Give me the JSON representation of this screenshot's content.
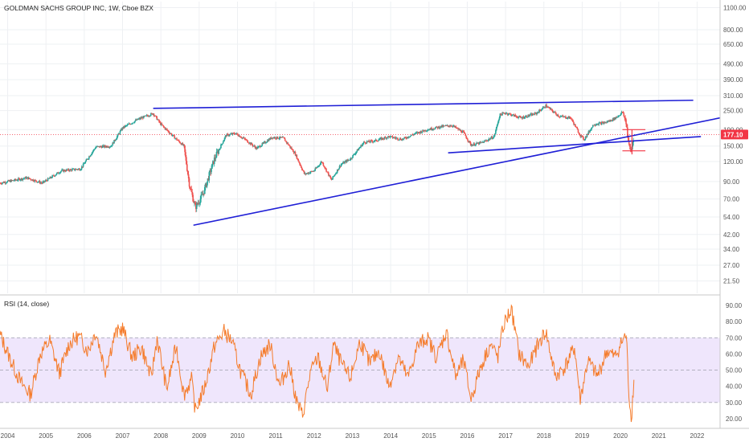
{
  "header": {
    "symbol_title": "GOLDMAN SACHS GROUP INC, 1W, Cboe BZX",
    "rsi_title": "RSI (14, close)"
  },
  "price_badge": {
    "value": "177.10",
    "color": "#f23645"
  },
  "colors": {
    "up": "#26a69a",
    "down": "#ef5350",
    "trendline": "#1f1fd6",
    "rsi_line": "#f57c2c",
    "rsi_band": "#e9ddfb",
    "marker": "#f23645",
    "price_line": "#f23645"
  },
  "chart_data": [
    {
      "type": "candlestick",
      "title": "GOLDMAN SACHS GROUP INC, 1W, Cboe BZX",
      "y_scale": "log",
      "ylim": [
        18,
        1200
      ],
      "xlim": [
        2003.8,
        2022.6
      ],
      "y_ticks": [
        1100,
        800,
        650,
        490,
        390,
        310,
        250,
        190,
        150,
        120,
        90,
        70,
        54,
        42,
        34,
        27,
        21.5
      ],
      "y_tick_labels": [
        "1100.00",
        "800.00",
        "650.00",
        "490.00",
        "390.00",
        "310.00",
        "250.00",
        "190.00",
        "150.00",
        "120.00",
        "90.00",
        "70.00",
        "54.00",
        "42.00",
        "34.00",
        "27.00",
        "21.50"
      ],
      "x_ticks": [
        2004,
        2005,
        2006,
        2007,
        2008,
        2009,
        2010,
        2011,
        2012,
        2013,
        2014,
        2015,
        2016,
        2017,
        2018,
        2019,
        2020,
        2021,
        2022
      ],
      "x_tick_labels": [
        "2004",
        "2005",
        "2006",
        "2007",
        "2008",
        "2009",
        "2010",
        "2011",
        "2012",
        "2013",
        "2014",
        "2015",
        "2016",
        "2017",
        "2018",
        "2019",
        "2020",
        "2021",
        "2022"
      ],
      "last_price": 177.1,
      "close_path": [
        [
          2003.8,
          88
        ],
        [
          2004.5,
          95
        ],
        [
          2004.9,
          88
        ],
        [
          2005.4,
          105
        ],
        [
          2005.9,
          108
        ],
        [
          2006.3,
          148
        ],
        [
          2006.7,
          150
        ],
        [
          2007.0,
          195
        ],
        [
          2007.4,
          220
        ],
        [
          2007.8,
          240
        ],
        [
          2008.0,
          205
        ],
        [
          2008.3,
          175
        ],
        [
          2008.6,
          150
        ],
        [
          2008.75,
          85
        ],
        [
          2008.9,
          62
        ],
        [
          2009.1,
          75
        ],
        [
          2009.4,
          125
        ],
        [
          2009.7,
          175
        ],
        [
          2009.95,
          180
        ],
        [
          2010.2,
          165
        ],
        [
          2010.5,
          145
        ],
        [
          2010.9,
          170
        ],
        [
          2011.2,
          168
        ],
        [
          2011.5,
          135
        ],
        [
          2011.75,
          100
        ],
        [
          2012.0,
          105
        ],
        [
          2012.2,
          120
        ],
        [
          2012.45,
          92
        ],
        [
          2012.7,
          115
        ],
        [
          2012.95,
          125
        ],
        [
          2013.3,
          158
        ],
        [
          2013.6,
          162
        ],
        [
          2013.95,
          172
        ],
        [
          2014.3,
          165
        ],
        [
          2014.6,
          178
        ],
        [
          2014.95,
          190
        ],
        [
          2015.3,
          198
        ],
        [
          2015.6,
          202
        ],
        [
          2015.9,
          182
        ],
        [
          2016.1,
          152
        ],
        [
          2016.4,
          158
        ],
        [
          2016.7,
          172
        ],
        [
          2016.85,
          235
        ],
        [
          2017.0,
          242
        ],
        [
          2017.4,
          225
        ],
        [
          2017.8,
          240
        ],
        [
          2018.05,
          268
        ],
        [
          2018.4,
          230
        ],
        [
          2018.7,
          225
        ],
        [
          2018.95,
          175
        ],
        [
          2019.05,
          165
        ],
        [
          2019.3,
          205
        ],
        [
          2019.6,
          210
        ],
        [
          2019.8,
          220
        ],
        [
          2019.95,
          232
        ],
        [
          2020.05,
          245
        ],
        [
          2020.15,
          210
        ],
        [
          2020.22,
          150
        ],
        [
          2020.28,
          140
        ],
        [
          2020.35,
          177.1
        ]
      ],
      "trendlines": [
        {
          "from": [
            2007.8,
            258
          ],
          "to": [
            2021.9,
            290
          ]
        },
        {
          "from": [
            2008.85,
            48
          ],
          "to": [
            2022.7,
            225
          ]
        },
        {
          "from": [
            2015.5,
            136
          ],
          "to": [
            2022.1,
            172
          ]
        }
      ],
      "markers": [
        {
          "kind": "range",
          "x": 2020.3,
          "low": 133,
          "high": 190
        },
        {
          "kind": "level",
          "from": 2020.05,
          "to": 2020.65,
          "y": 190
        },
        {
          "kind": "level",
          "from": 2020.05,
          "to": 2020.65,
          "y": 140
        }
      ]
    },
    {
      "type": "line",
      "title": "RSI (14, close)",
      "ylim": [
        15,
        95
      ],
      "y_ticks": [
        90,
        80,
        70,
        60,
        50,
        40,
        30,
        20
      ],
      "y_tick_labels": [
        "90.00",
        "80.00",
        "70.00",
        "60.00",
        "50.00",
        "40.00",
        "30.00",
        "20.00"
      ],
      "band": [
        30,
        70
      ],
      "mid": 50,
      "series": [
        {
          "x": [
            2003.8,
            2004.1,
            2004.35,
            2004.6,
            2004.85,
            2005.1,
            2005.35,
            2005.6,
            2005.85,
            2006.1,
            2006.3,
            2006.55,
            2006.8,
            2007.0,
            2007.25,
            2007.5,
            2007.75,
            2007.9,
            2008.15,
            2008.4,
            2008.6,
            2008.8,
            2008.9,
            2009.15,
            2009.4,
            2009.65,
            2009.85,
            2010.1,
            2010.35,
            2010.6,
            2010.85,
            2011.1,
            2011.35,
            2011.55,
            2011.7,
            2011.9,
            2012.1,
            2012.35,
            2012.5,
            2012.75,
            2012.95,
            2013.2,
            2013.45,
            2013.7,
            2013.95,
            2014.2,
            2014.45,
            2014.7,
            2014.95,
            2015.2,
            2015.45,
            2015.7,
            2015.9,
            2016.1,
            2016.35,
            2016.6,
            2016.8,
            2016.95,
            2017.15,
            2017.35,
            2017.6,
            2017.85,
            2018.05,
            2018.3,
            2018.55,
            2018.8,
            2018.95,
            2019.15,
            2019.4,
            2019.65,
            2019.85,
            2020.05,
            2020.15,
            2020.22,
            2020.28,
            2020.35
          ],
          "values": [
            72,
            55,
            42,
            35,
            60,
            68,
            48,
            66,
            71,
            62,
            74,
            50,
            72,
            76,
            58,
            64,
            45,
            70,
            38,
            65,
            35,
            44,
            25,
            40,
            65,
            74,
            68,
            48,
            35,
            58,
            66,
            40,
            54,
            30,
            22,
            48,
            58,
            38,
            66,
            52,
            45,
            68,
            54,
            62,
            40,
            58,
            45,
            65,
            70,
            58,
            74,
            46,
            56,
            32,
            52,
            66,
            58,
            78,
            88,
            60,
            52,
            66,
            74,
            46,
            52,
            64,
            32,
            56,
            46,
            62,
            58,
            68,
            72,
            36,
            19,
            44
          ]
        }
      ]
    }
  ]
}
